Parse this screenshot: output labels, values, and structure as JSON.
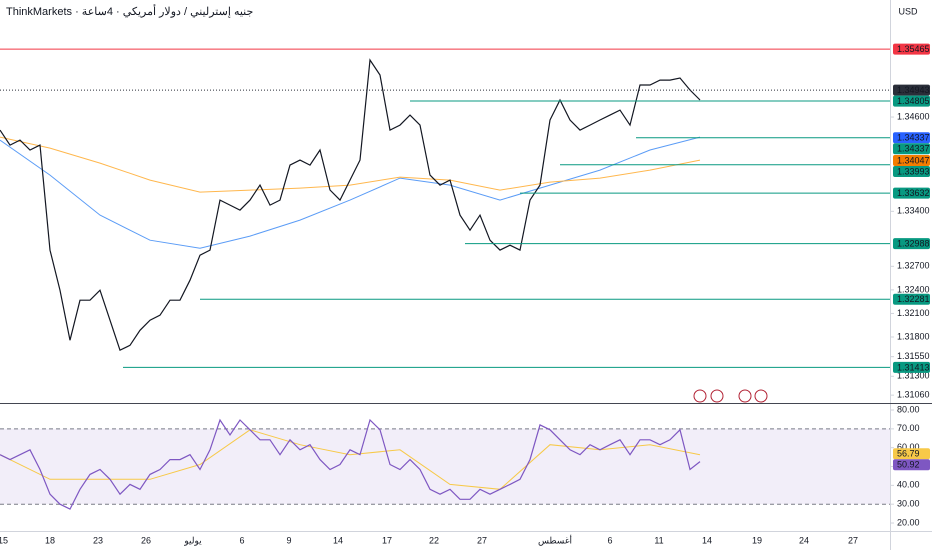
{
  "header": {
    "title": "ThinkMarkets · جنيه إسترليني / دولار أمريكي · 4ساعة",
    "currency": "USD"
  },
  "x_labels": [
    "15",
    "18",
    "23",
    "26",
    "يوليو",
    "6",
    "9",
    "14",
    "17",
    "22",
    "27",
    "أغسطس",
    "6",
    "11",
    "14",
    "19",
    "24",
    "27"
  ],
  "chart_data": [
    {
      "type": "line",
      "ylim": [
        1.3096,
        1.3609
      ],
      "yticks": [
        {
          "value": 1.346,
          "label": "1.34600"
        },
        {
          "value": 1.334,
          "label": "1.33400"
        },
        {
          "value": 1.327,
          "label": "1.32700"
        },
        {
          "value": 1.324,
          "label": "1.32400"
        },
        {
          "value": 1.321,
          "label": "1.32100"
        },
        {
          "value": 1.318,
          "label": "1.31800"
        },
        {
          "value": 1.3155,
          "label": "1.31550"
        },
        {
          "value": 1.313,
          "label": "1.31300"
        },
        {
          "value": 1.3106,
          "label": "1.31060"
        }
      ],
      "levels": [
        {
          "value": 1.35465,
          "label": "1.35465",
          "color": "#f23645",
          "line": "solid"
        },
        {
          "value": 1.34943,
          "label": "1.34943",
          "color": "#2a2e39",
          "line": "dotted"
        },
        {
          "value": 1.34805,
          "label": "1.34805",
          "color": "#089981",
          "line": "solid"
        },
        {
          "value": 1.34337,
          "label": "1.34337",
          "color": "#2962ff"
        },
        {
          "value": 1.34337,
          "label": "1.34337",
          "color": "#089981",
          "line": "solid"
        },
        {
          "value": 1.34047,
          "label": "1.34047",
          "color": "#f57c00"
        },
        {
          "value": 1.33993,
          "label": "1.33993",
          "color": "#089981",
          "line": "solid"
        },
        {
          "value": 1.33632,
          "label": "1.33632",
          "color": "#089981",
          "line": "solid"
        },
        {
          "value": 1.32988,
          "label": "1.32988",
          "color": "#089981",
          "line": "solid"
        },
        {
          "value": 1.32281,
          "label": "1.32281",
          "color": "#089981",
          "line": "solid"
        },
        {
          "value": 1.31413,
          "label": "1.31413",
          "color": "#089981",
          "line": "solid"
        }
      ],
      "series": [
        {
          "color": "#5b9cf6",
          "values": [
            1.34307,
            1.33861,
            1.33352,
            1.33033,
            1.32931,
            1.33084,
            1.33288,
            1.33543,
            1.33823,
            1.33734,
            1.33543,
            1.33734,
            1.33925,
            1.3418,
            1.34345
          ]
        },
        {
          "color": "#ffb74d",
          "values": [
            1.34345,
            1.34205,
            1.34014,
            1.33797,
            1.33645,
            1.3367,
            1.33696,
            1.33734,
            1.33836,
            1.33797,
            1.3367,
            1.33772,
            1.33823,
            1.33925,
            1.34052
          ]
        },
        {
          "color": "#131722",
          "values": [
            1.34434,
            1.34243,
            1.34307,
            1.3418,
            1.34243,
            1.32906,
            1.32396,
            1.31759,
            1.32269,
            1.32269,
            1.32396,
            1.32014,
            1.31632,
            1.31695,
            1.31886,
            1.32014,
            1.32078,
            1.32269,
            1.32269,
            1.32523,
            1.32842,
            1.32906,
            1.33543,
            1.33479,
            1.33415,
            1.33543,
            1.33734,
            1.33479,
            1.33543,
            1.33988,
            1.34052,
            1.33988,
            1.3418,
            1.33671,
            1.33543,
            1.33797,
            1.34052,
            1.35326,
            1.35135,
            1.34434,
            1.34498,
            1.34625,
            1.34498,
            1.33861,
            1.33734,
            1.33797,
            1.33352,
            1.3316,
            1.33352,
            1.33033,
            1.32906,
            1.32969,
            1.32906,
            1.33543,
            1.33734,
            1.34562,
            1.34817,
            1.34562,
            1.34434,
            1.34498,
            1.34562,
            1.34625,
            1.34689,
            1.34498,
            1.35008,
            1.35008,
            1.35071,
            1.35071,
            1.35097,
            1.34944,
            1.34817
          ]
        }
      ]
    },
    {
      "type": "line",
      "ylim": [
        16.3,
        83.2
      ],
      "yticks": [
        {
          "value": 80,
          "label": "80.00"
        },
        {
          "value": 70,
          "label": "70.00"
        },
        {
          "value": 60,
          "label": "60.00"
        },
        {
          "value": 50,
          "label": "50.00"
        },
        {
          "value": 40,
          "label": "40.00"
        },
        {
          "value": 30,
          "label": "30.00"
        },
        {
          "value": 20,
          "label": "20.00"
        }
      ],
      "band": [
        30,
        70
      ],
      "levels": [
        {
          "value": 56.79,
          "label": "56.79",
          "color": "#f7c948"
        },
        {
          "value": 50.92,
          "label": "50.92",
          "color": "#7e57c2"
        }
      ],
      "series": [
        {
          "color": "#f7c948",
          "values": [
            56.3,
            43.2,
            43.2,
            43.2,
            51.1,
            69.5,
            61.6,
            56.3,
            58.9,
            40.5,
            37.9,
            61.6,
            58.9,
            61.6,
            56.3
          ]
        },
        {
          "color": "#7e57c2",
          "values": [
            56.3,
            53.7,
            56.3,
            58.9,
            48.4,
            35.3,
            30.0,
            27.4,
            37.9,
            45.8,
            48.4,
            43.2,
            35.3,
            40.5,
            37.9,
            45.8,
            48.4,
            53.7,
            53.7,
            56.3,
            48.4,
            58.9,
            74.7,
            66.8,
            74.7,
            69.5,
            64.2,
            64.2,
            56.3,
            64.2,
            58.9,
            61.6,
            53.7,
            48.4,
            51.1,
            58.9,
            56.3,
            74.7,
            69.5,
            51.1,
            48.4,
            53.7,
            48.4,
            37.9,
            35.3,
            37.9,
            32.6,
            32.6,
            37.9,
            35.3,
            37.9,
            40.5,
            43.2,
            53.7,
            72.1,
            69.5,
            64.2,
            58.9,
            56.3,
            61.6,
            58.9,
            61.6,
            64.2,
            56.3,
            64.2,
            64.2,
            61.6,
            64.2,
            69.5,
            48.4,
            52.6
          ]
        }
      ]
    }
  ]
}
